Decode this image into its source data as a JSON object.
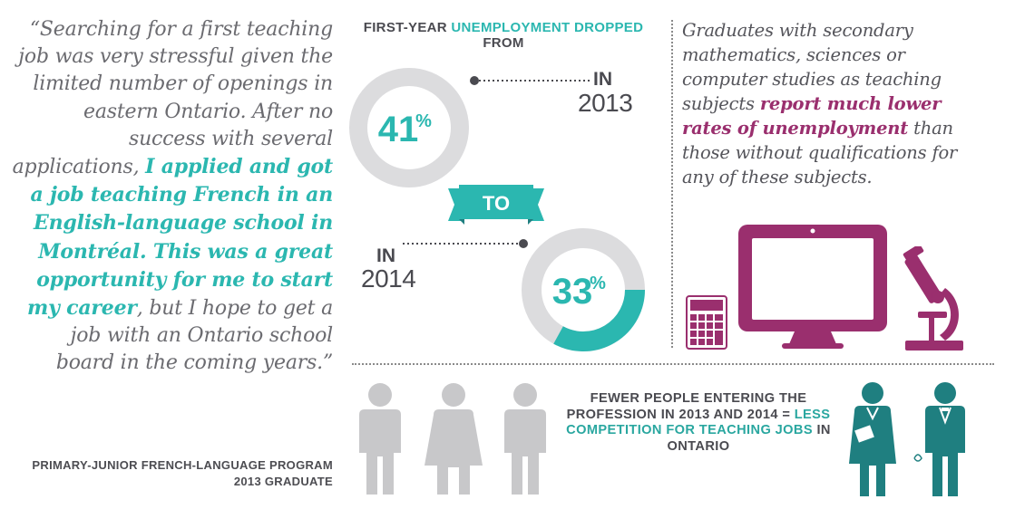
{
  "quote": {
    "part1": "“Searching for a first teaching job was very stressful given the limited number of openings in eastern Ontario. After no success with several applications, ",
    "highlight": "I applied and got a job teaching French in an English-language school in Montréal. This was a great opportunity for me to start my career",
    "part2": ", but I hope to get a job with an Ontario school board in the coming years.”"
  },
  "attribution": "PRIMARY-JUNIOR FRENCH-LANGUAGE PROGRAM 2013 GRADUATE",
  "headline": {
    "part1": "FIRST-YEAR ",
    "highlight": "UNEMPLOYMENT DROPPED",
    "part2": " FROM"
  },
  "stats": [
    {
      "in_label": "IN",
      "year": "2013",
      "value": 41,
      "display": "41",
      "unit": "%"
    },
    {
      "in_label": "IN",
      "year": "2014",
      "value": 33,
      "display": "33",
      "unit": "%"
    }
  ],
  "to_label": "TO",
  "right_text": {
    "part1": "Graduates with secondary mathematics, sciences or computer studies as teaching subjects ",
    "highlight": "report much lower rates of unemployment",
    "part2": " than those without qualifications for any of these subjects."
  },
  "fewer": {
    "part1": "FEWER PEOPLE ENTERING THE PROFESSION IN 2013 AND 2014 = ",
    "highlight": "LESS COMPETITION FOR TEACHING JOBS",
    "part2": " IN ONTARIO"
  },
  "colors": {
    "teal": "#2bb7b0",
    "dark_teal": "#1f7f80",
    "ring_gray": "#dcdcde",
    "magenta": "#9a2f6e",
    "person_gray": "#c8c8ca",
    "text_gray": "#4a4a50"
  },
  "icons": [
    "calculator-icon",
    "computer-monitor-icon",
    "microscope-icon",
    "person-icon",
    "teacher-icon"
  ]
}
